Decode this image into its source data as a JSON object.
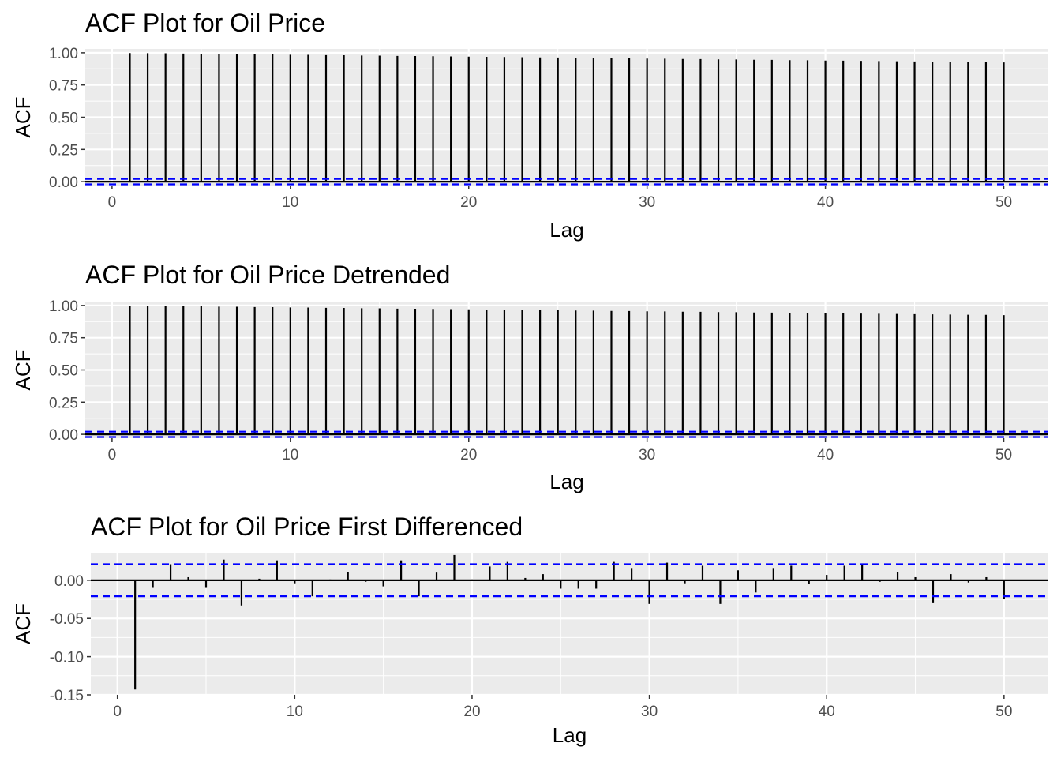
{
  "chart_data": [
    {
      "type": "bar",
      "title": "ACF Plot for Oil Price",
      "xlabel": "Lag",
      "ylabel": "ACF",
      "xlim": [
        -1.5,
        52.5
      ],
      "ylim": [
        -0.03,
        1.03
      ],
      "x_ticks": [
        0,
        10,
        20,
        30,
        40,
        50
      ],
      "y_ticks": [
        0.0,
        0.25,
        0.5,
        0.75,
        1.0
      ],
      "y_tick_labels": [
        "0.00",
        "0.25",
        "0.50",
        "0.75",
        "1.00"
      ],
      "confidence_bounds": [
        0.021,
        -0.021
      ],
      "grid": true,
      "lags": [
        1,
        2,
        3,
        4,
        5,
        6,
        7,
        8,
        9,
        10,
        11,
        12,
        13,
        14,
        15,
        16,
        17,
        18,
        19,
        20,
        21,
        22,
        23,
        24,
        25,
        26,
        27,
        28,
        29,
        30,
        31,
        32,
        33,
        34,
        35,
        36,
        37,
        38,
        39,
        40,
        41,
        42,
        43,
        44,
        45,
        46,
        47,
        48,
        49,
        50
      ],
      "values": [
        0.998,
        0.997,
        0.996,
        0.994,
        0.993,
        0.991,
        0.99,
        0.988,
        0.987,
        0.985,
        0.984,
        0.982,
        0.981,
        0.979,
        0.978,
        0.976,
        0.975,
        0.973,
        0.972,
        0.97,
        0.969,
        0.967,
        0.966,
        0.964,
        0.963,
        0.961,
        0.96,
        0.958,
        0.957,
        0.955,
        0.954,
        0.952,
        0.951,
        0.949,
        0.948,
        0.946,
        0.945,
        0.943,
        0.942,
        0.94,
        0.939,
        0.937,
        0.936,
        0.934,
        0.933,
        0.931,
        0.93,
        0.928,
        0.927,
        0.925
      ]
    },
    {
      "type": "bar",
      "title": "ACF Plot for Oil Price Detrended",
      "xlabel": "Lag",
      "ylabel": "ACF",
      "xlim": [
        -1.5,
        52.5
      ],
      "ylim": [
        -0.03,
        1.03
      ],
      "x_ticks": [
        0,
        10,
        20,
        30,
        40,
        50
      ],
      "y_ticks": [
        0.0,
        0.25,
        0.5,
        0.75,
        1.0
      ],
      "y_tick_labels": [
        "0.00",
        "0.25",
        "0.50",
        "0.75",
        "1.00"
      ],
      "confidence_bounds": [
        0.021,
        -0.021
      ],
      "grid": true,
      "lags": [
        1,
        2,
        3,
        4,
        5,
        6,
        7,
        8,
        9,
        10,
        11,
        12,
        13,
        14,
        15,
        16,
        17,
        18,
        19,
        20,
        21,
        22,
        23,
        24,
        25,
        26,
        27,
        28,
        29,
        30,
        31,
        32,
        33,
        34,
        35,
        36,
        37,
        38,
        39,
        40,
        41,
        42,
        43,
        44,
        45,
        46,
        47,
        48,
        49,
        50
      ],
      "values": [
        0.998,
        0.997,
        0.996,
        0.994,
        0.993,
        0.991,
        0.99,
        0.988,
        0.987,
        0.985,
        0.984,
        0.982,
        0.981,
        0.979,
        0.978,
        0.976,
        0.975,
        0.973,
        0.972,
        0.97,
        0.969,
        0.967,
        0.966,
        0.964,
        0.963,
        0.961,
        0.96,
        0.958,
        0.957,
        0.955,
        0.954,
        0.952,
        0.951,
        0.949,
        0.948,
        0.946,
        0.945,
        0.943,
        0.942,
        0.94,
        0.939,
        0.937,
        0.936,
        0.934,
        0.933,
        0.931,
        0.93,
        0.928,
        0.927,
        0.925
      ]
    },
    {
      "type": "bar",
      "title": "ACF Plot for Oil Price First Differenced",
      "xlabel": "Lag",
      "ylabel": "ACF",
      "xlim": [
        -1.5,
        52.5
      ],
      "ylim": [
        -0.15,
        0.036
      ],
      "x_ticks": [
        0,
        10,
        20,
        30,
        40,
        50
      ],
      "y_ticks": [
        -0.15,
        -0.1,
        -0.05,
        0.0
      ],
      "y_tick_labels": [
        "-0.15",
        "-0.10",
        "-0.05",
        "0.00"
      ],
      "confidence_bounds": [
        0.021,
        -0.021
      ],
      "grid": true,
      "lags": [
        1,
        2,
        3,
        4,
        5,
        6,
        7,
        8,
        9,
        10,
        11,
        12,
        13,
        14,
        15,
        16,
        17,
        18,
        19,
        20,
        21,
        22,
        23,
        24,
        25,
        26,
        27,
        28,
        29,
        30,
        31,
        32,
        33,
        34,
        35,
        36,
        37,
        38,
        39,
        40,
        41,
        42,
        43,
        44,
        45,
        46,
        47,
        48,
        49,
        50
      ],
      "values": [
        -0.143,
        -0.01,
        0.021,
        0.004,
        -0.01,
        0.027,
        -0.033,
        0.002,
        0.026,
        -0.004,
        -0.021,
        0.001,
        0.011,
        -0.002,
        -0.008,
        0.026,
        -0.021,
        0.01,
        0.033,
        0.001,
        0.018,
        0.024,
        0.003,
        0.008,
        -0.011,
        -0.011,
        -0.011,
        0.024,
        0.015,
        -0.031,
        0.023,
        -0.004,
        0.019,
        -0.031,
        0.013,
        -0.016,
        0.015,
        0.019,
        -0.005,
        0.007,
        0.019,
        0.02,
        -0.002,
        0.011,
        0.004,
        -0.03,
        0.008,
        -0.003,
        0.004,
        -0.024
      ]
    }
  ]
}
